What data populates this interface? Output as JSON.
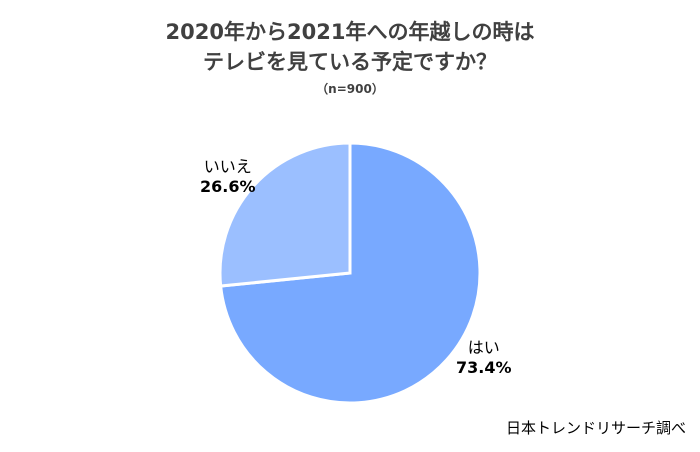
{
  "chart_data": {
    "type": "pie",
    "title": "2020年から2021年への年越しの時は\nテレビを見ている予定ですか？",
    "title_lines": [
      "2020年から2021年への年越しの時は",
      "テレビを見ている予定ですか？"
    ],
    "subtitle": "（n=900）",
    "categories": [
      "はい",
      "いいえ"
    ],
    "values": [
      73.4,
      26.6
    ],
    "value_labels": [
      "73.4%",
      "26.6%"
    ],
    "colors": [
      "#78a9ff",
      "#9bbfff"
    ],
    "legend": "none",
    "start": "12 o'clock",
    "direction": "clockwise"
  },
  "source": "日本トレンドリサーチ調べ"
}
